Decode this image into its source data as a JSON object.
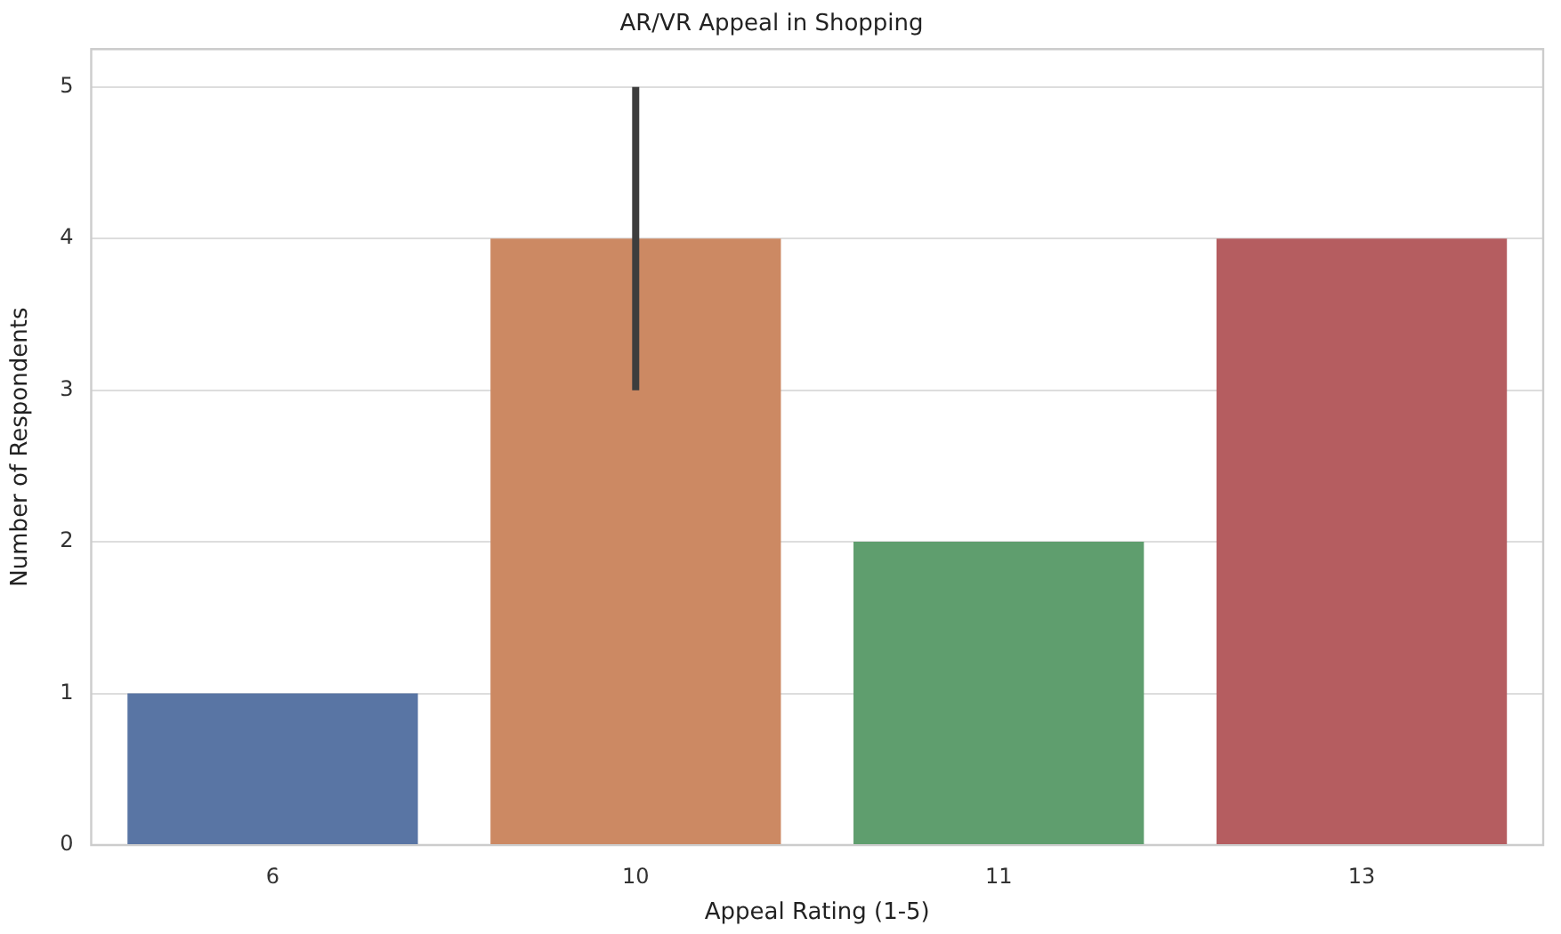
{
  "chart_data": {
    "type": "bar",
    "title": "AR/VR Appeal in Shopping",
    "xlabel": "Appeal Rating (1-5)",
    "ylabel": "Number of Respondents",
    "categories": [
      "6",
      "10",
      "11",
      "13"
    ],
    "values": [
      1,
      4,
      2,
      4
    ],
    "colors": [
      "#5975a4",
      "#cc8963",
      "#5f9e6e",
      "#b55d60"
    ],
    "errors": [
      null,
      [
        3,
        5
      ],
      null,
      null
    ],
    "ylim": [
      0,
      5.25
    ],
    "yticks": [
      0,
      1,
      2,
      3,
      4,
      5
    ],
    "grid": "y",
    "legend": false
  }
}
